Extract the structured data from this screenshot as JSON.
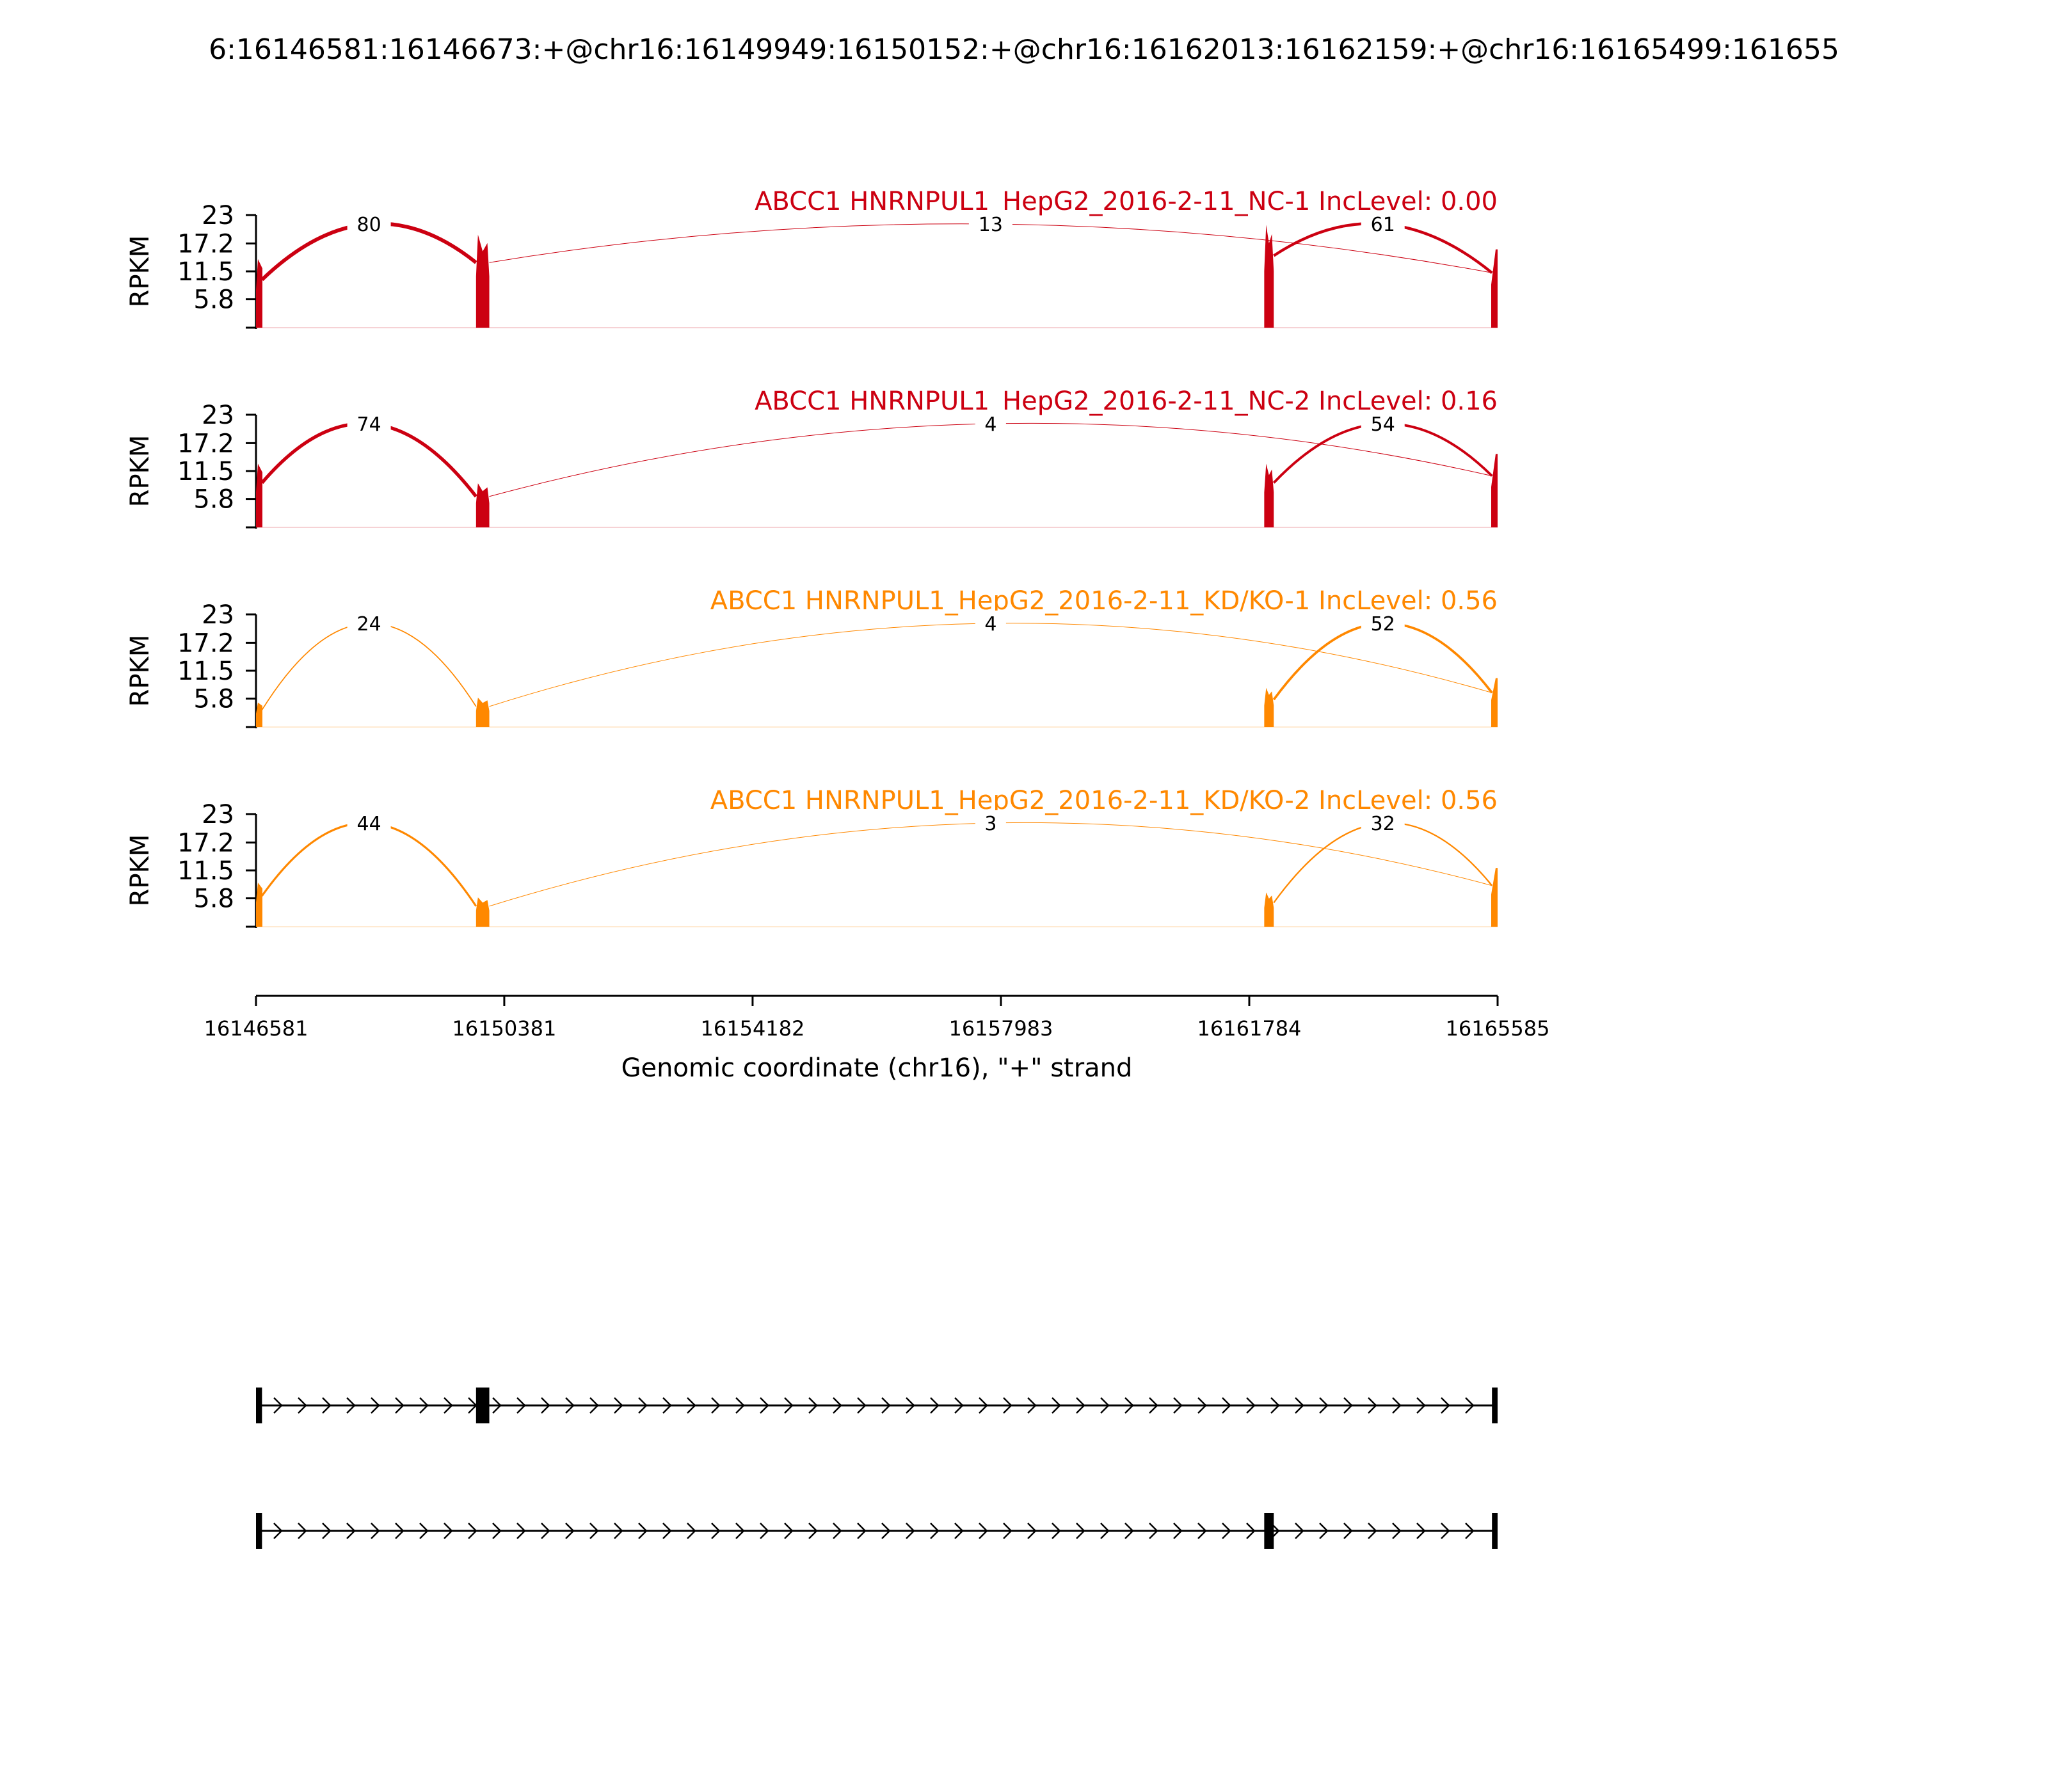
{
  "page": {
    "title": "6:16146581:16146673:+@chr16:16149949:16150152:+@chr16:16162013:16162159:+@chr16:16165499:161655"
  },
  "chart_data": {
    "type": "area",
    "title": "6:16146581:16146673:+@chr16:16149949:16150152:+@chr16:16162013:16162159:+@chr16:16165499:161655",
    "ylabel": "RPKM",
    "xlabel": "Genomic coordinate (chr16), \"+\" strand",
    "xlim": [
      16146581,
      16165585
    ],
    "x_ticks": [
      16146581,
      16150381,
      16154182,
      16157983,
      16161784,
      16165585
    ],
    "ylim": [
      0,
      23
    ],
    "y_ticks": [
      5.8,
      11.5,
      17.2,
      23
    ],
    "y_tick_labels": [
      "5.8",
      "11.5",
      "17.2",
      "23"
    ],
    "exons": [
      {
        "start": 16146581,
        "end": 16146673
      },
      {
        "start": 16149949,
        "end": 16150152
      },
      {
        "start": 16162013,
        "end": 16162159
      },
      {
        "start": 16165499,
        "end": 16165585
      }
    ],
    "series": [
      {
        "name": "ABCC1 HNRNPUL1_HepG2_2016-2-11_NC-1 IncLevel: 0.00",
        "color": "#cc0011",
        "exon_peaks": [
          14,
          19,
          21,
          16
        ],
        "junctions": [
          {
            "from": 16146673,
            "to": 16149949,
            "count": 80
          },
          {
            "from": 16150152,
            "to": 16165499,
            "count": 13
          },
          {
            "from": 16162159,
            "to": 16165499,
            "count": 61
          }
        ]
      },
      {
        "name": "ABCC1 HNRNPUL1_HepG2_2016-2-11_NC-2 IncLevel: 0.16",
        "color": "#cc0011",
        "exon_peaks": [
          13,
          9,
          13,
          15
        ],
        "junctions": [
          {
            "from": 16146673,
            "to": 16149949,
            "count": 74
          },
          {
            "from": 16150152,
            "to": 16165499,
            "count": 4
          },
          {
            "from": 16162159,
            "to": 16165499,
            "count": 54
          }
        ]
      },
      {
        "name": "ABCC1 HNRNPUL1_HepG2_2016-2-11_KD/KO-1 IncLevel: 0.56",
        "color": "#ff8800",
        "exon_peaks": [
          5,
          6,
          8,
          10
        ],
        "junctions": [
          {
            "from": 16146673,
            "to": 16149949,
            "count": 24
          },
          {
            "from": 16150152,
            "to": 16165499,
            "count": 4
          },
          {
            "from": 16162159,
            "to": 16165499,
            "count": 52
          }
        ]
      },
      {
        "name": "ABCC1 HNRNPUL1_HepG2_2016-2-11_KD/KO-2 IncLevel: 0.56",
        "color": "#ff8800",
        "exon_peaks": [
          9,
          6,
          7,
          12
        ],
        "junctions": [
          {
            "from": 16146673,
            "to": 16149949,
            "count": 44
          },
          {
            "from": 16150152,
            "to": 16165499,
            "count": 3
          },
          {
            "from": 16162159,
            "to": 16165499,
            "count": 32
          }
        ]
      }
    ],
    "isoforms": [
      {
        "exons": [
          [
            16146581,
            16146673
          ],
          [
            16149949,
            16150152
          ],
          [
            16165499,
            16165585
          ]
        ]
      },
      {
        "exons": [
          [
            16146581,
            16146673
          ],
          [
            16162013,
            16162159
          ],
          [
            16165499,
            16165585
          ]
        ]
      }
    ]
  }
}
